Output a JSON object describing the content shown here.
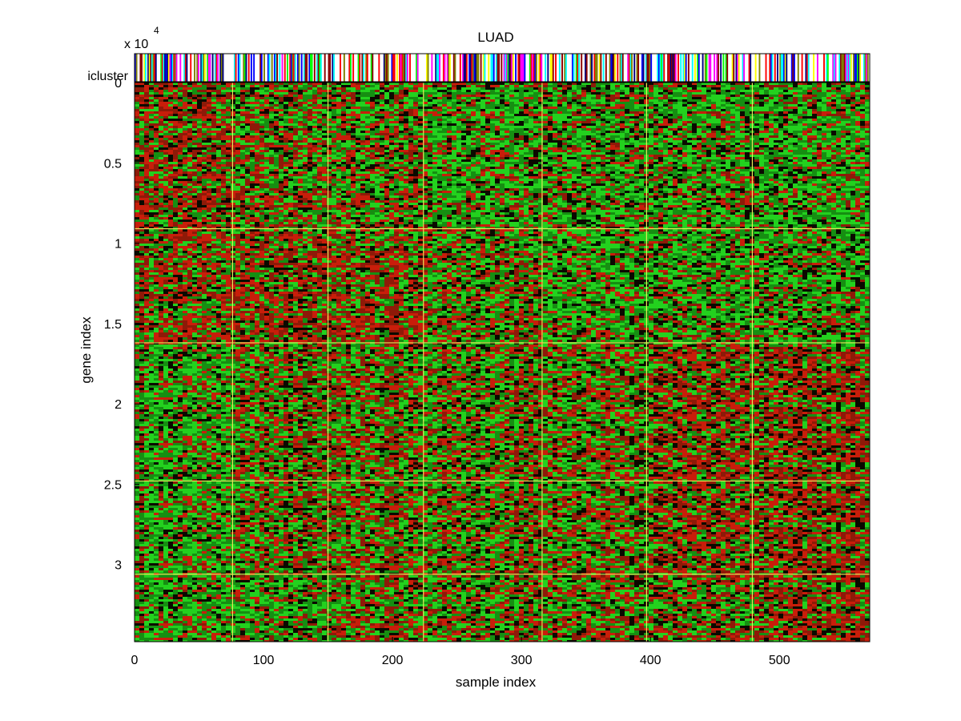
{
  "chart_data": {
    "type": "heatmap",
    "title": "LUAD",
    "xlabel": "sample index",
    "ylabel": "gene index",
    "y_exponent_label": "x 10",
    "y_exponent_power": "4",
    "annotation_track_label": "icluster",
    "xlim": [
      0,
      570
    ],
    "ylim": [
      0,
      34800
    ],
    "y_reversed": true,
    "x_ticks": [
      0,
      100,
      200,
      300,
      400,
      500
    ],
    "x_tick_labels": [
      "0",
      "100",
      "200",
      "300",
      "400",
      "500"
    ],
    "y_ticks": [
      0,
      5000,
      10000,
      15000,
      20000,
      25000,
      30000
    ],
    "y_tick_labels": [
      "0",
      "0.5",
      "1",
      "1.5",
      "2",
      "2.5",
      "3"
    ],
    "sample_cluster_boundaries": [
      76,
      150,
      224,
      316,
      397,
      479
    ],
    "gene_cluster_boundaries": [
      9100,
      16200,
      24800,
      30600
    ],
    "colormap": [
      "#00ff00",
      "#000000",
      "#ff0000"
    ],
    "separator_color": "#e6e65a",
    "cell_block_pattern": [
      [
        "red",
        "mixed",
        "mixed",
        "green",
        "green",
        "green",
        "green"
      ],
      [
        "red",
        "red",
        "red",
        "mixed",
        "green",
        "green",
        "green"
      ],
      [
        "green",
        "mixed",
        "mixed",
        "mixed",
        "mixed",
        "red",
        "red"
      ],
      [
        "green",
        "mixed",
        "mixed",
        "mixed",
        "mixed",
        "red",
        "red"
      ],
      [
        "green",
        "green",
        "mixed",
        "mixed",
        "mixed",
        "mixed",
        "red"
      ]
    ],
    "icluster_colors": [
      "#ff00ff",
      "#ffff00",
      "#00ffff",
      "#0000ff",
      "#ff0000",
      "#00ff00",
      "#ffffff",
      "#8b0000",
      "#000080",
      "#808000"
    ]
  }
}
